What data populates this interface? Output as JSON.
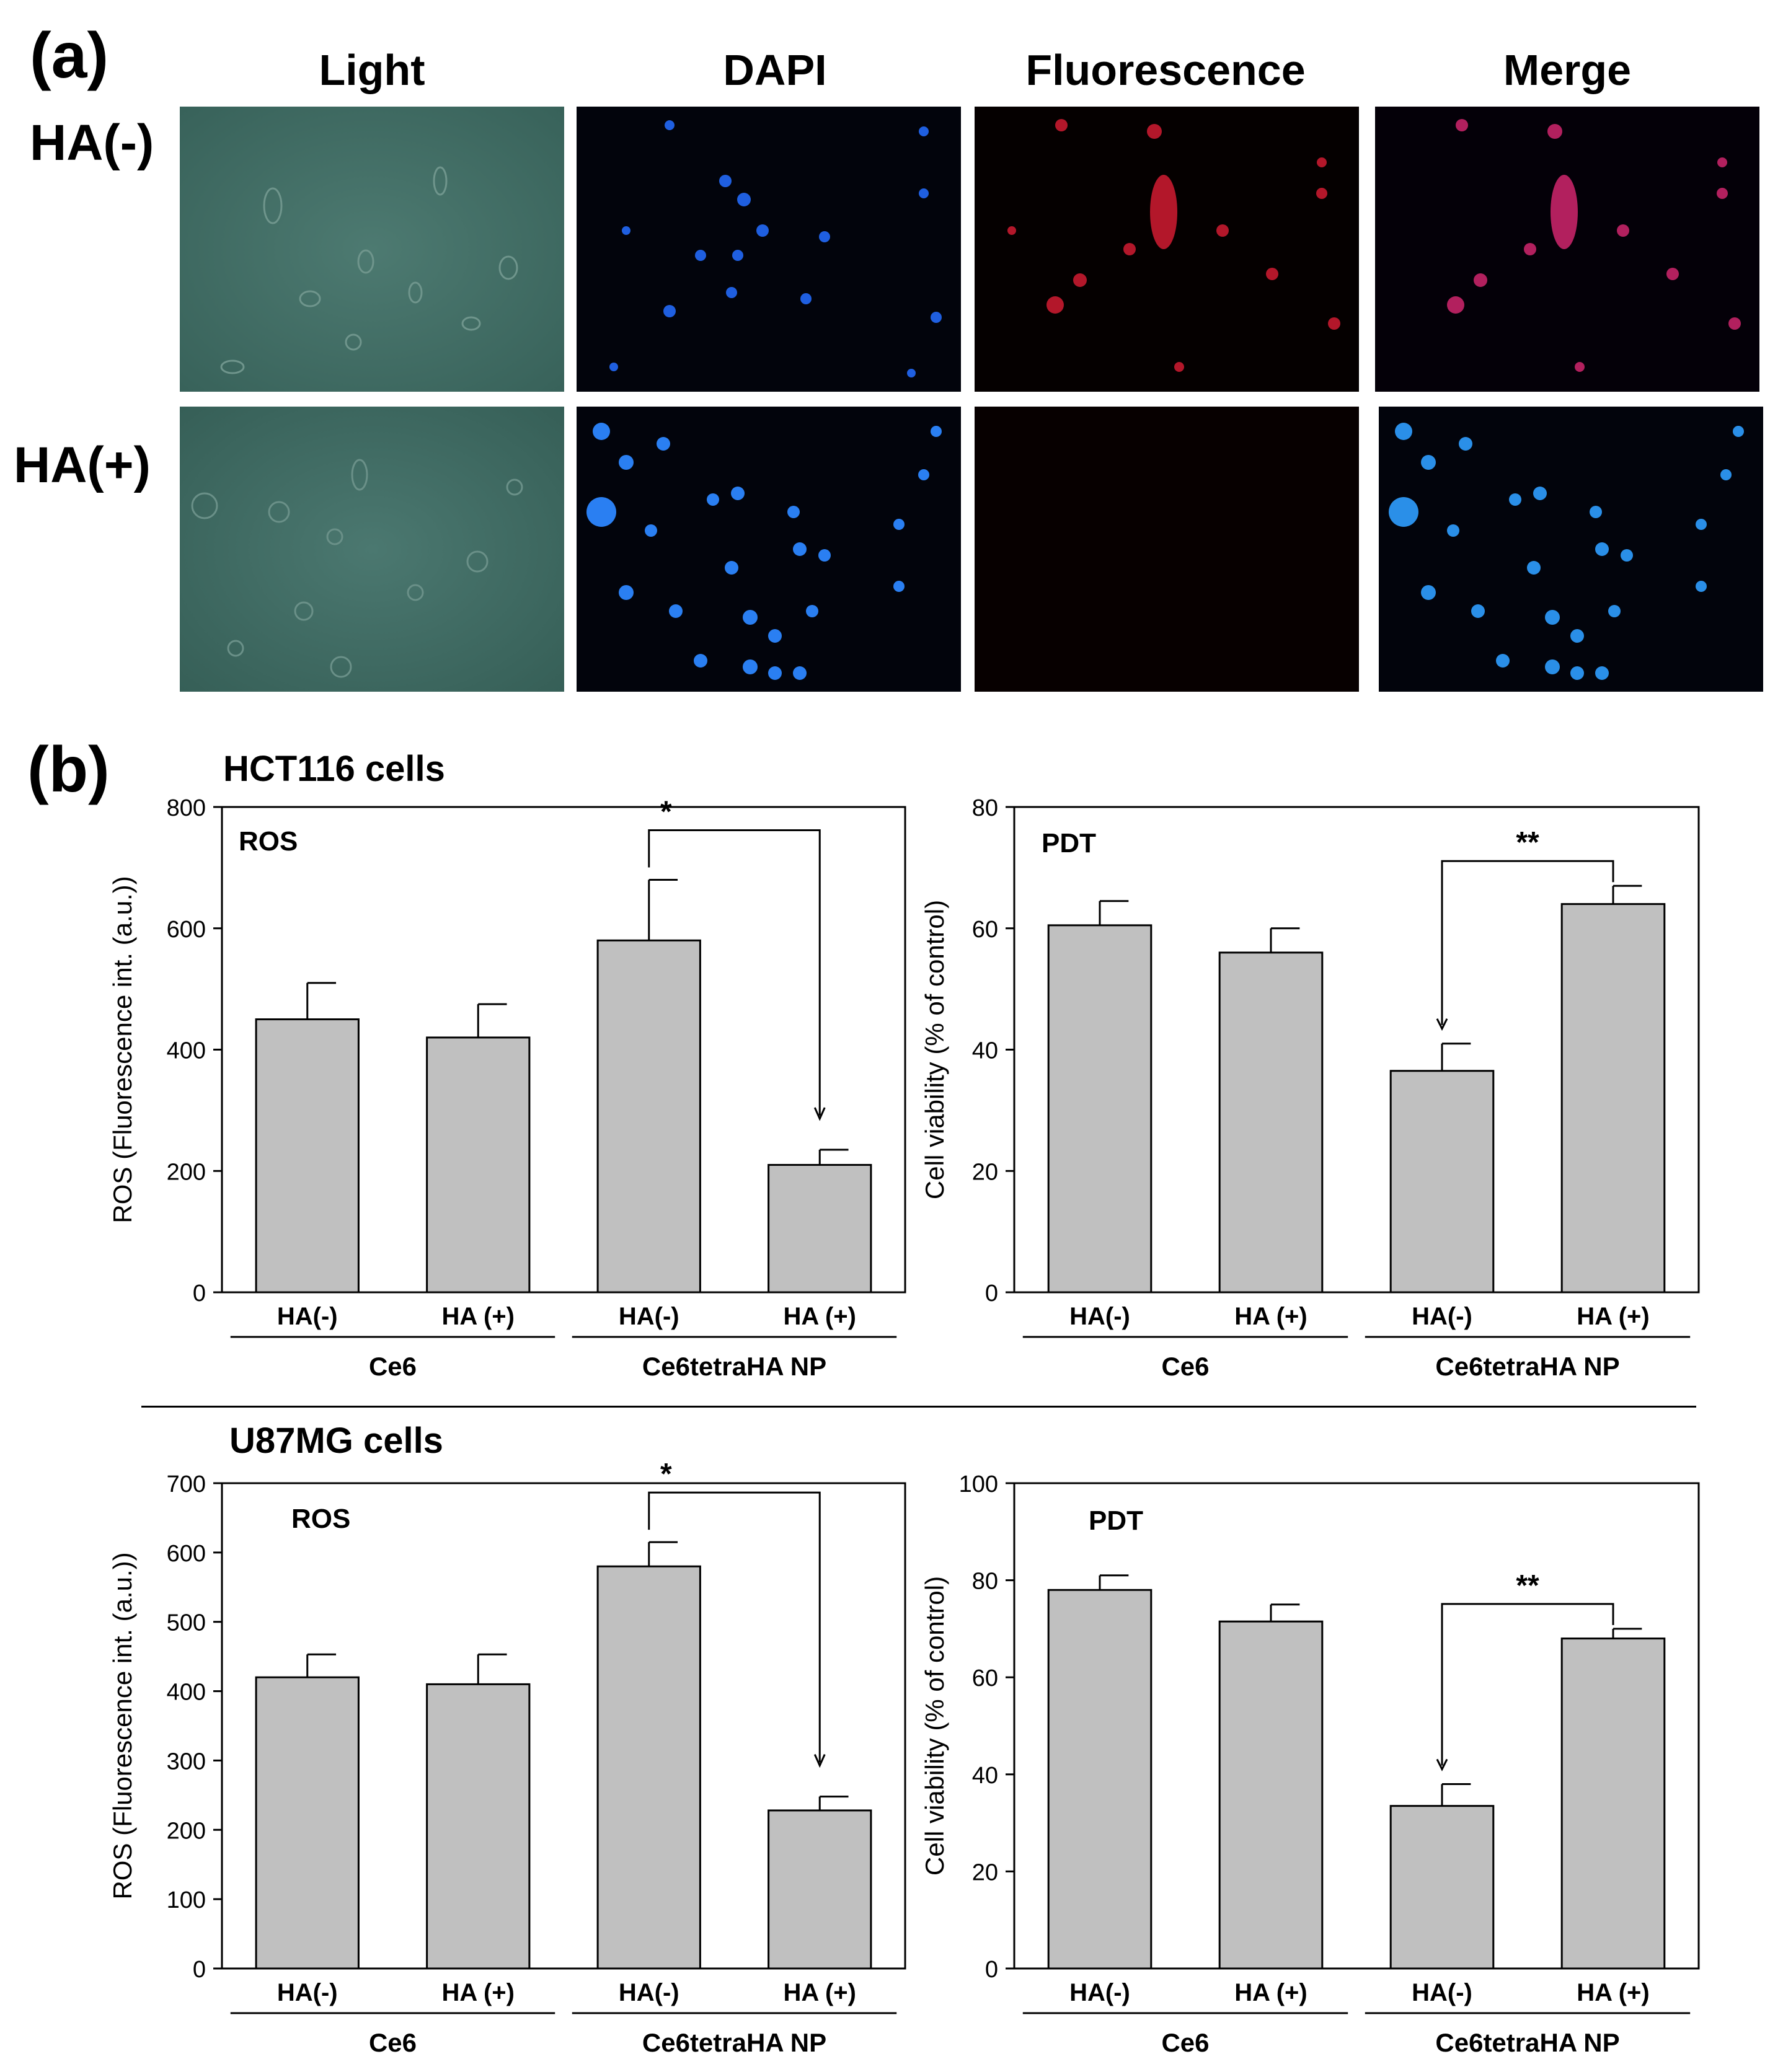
{
  "panel_a": {
    "label": "(a)",
    "columns": [
      "Light",
      "DAPI",
      "Fluorescence",
      "Merge"
    ],
    "rows": [
      "HA(-)",
      "HA(+)"
    ]
  },
  "panel_b": {
    "label": "(b)",
    "sections": [
      "HCT116 cells",
      "U87MG cells"
    ]
  },
  "colors": {
    "bar_fill": "#c0c0c0",
    "bar_stroke": "#000000",
    "light_field": "#3e6a62",
    "dapi": "#1e6cff",
    "fluor": "#d11a2a"
  },
  "chart_data": [
    {
      "type": "bar",
      "section": "HCT116 cells",
      "title": "ROS",
      "ylabel": "ROS (Fluorescence int. (a.u.))",
      "ylim": [
        0,
        800
      ],
      "yticks": [
        0,
        200,
        400,
        600,
        800
      ],
      "categories": [
        "HA(-)",
        "HA (+)",
        "HA(-)",
        "HA (+)"
      ],
      "groups": [
        "Ce6",
        "Ce6tetraHA NP"
      ],
      "values": [
        450,
        420,
        580,
        210
      ],
      "errors": [
        60,
        55,
        100,
        25
      ],
      "significance": {
        "from": 2,
        "to": 3,
        "label": "*"
      }
    },
    {
      "type": "bar",
      "section": "HCT116 cells",
      "title": "PDT",
      "ylabel": "Cell viability (% of control)",
      "ylim": [
        0,
        80
      ],
      "yticks": [
        0,
        20,
        40,
        60,
        80
      ],
      "categories": [
        "HA(-)",
        "HA (+)",
        "HA(-)",
        "HA (+)"
      ],
      "groups": [
        "Ce6",
        "Ce6tetraHA NP"
      ],
      "values": [
        60.5,
        56,
        36.5,
        64
      ],
      "errors": [
        4,
        4,
        4.5,
        3
      ],
      "significance": {
        "from": 2,
        "to": 3,
        "label": "**"
      }
    },
    {
      "type": "bar",
      "section": "U87MG cells",
      "title": "ROS",
      "ylabel": "ROS (Fluorescence int. (a.u.))",
      "ylim": [
        0,
        700
      ],
      "yticks": [
        0,
        100,
        200,
        300,
        400,
        500,
        600,
        700
      ],
      "categories": [
        "HA(-)",
        "HA (+)",
        "HA(-)",
        "HA (+)"
      ],
      "groups": [
        "Ce6",
        "Ce6tetraHA NP"
      ],
      "values": [
        420,
        410,
        580,
        228
      ],
      "errors": [
        33,
        43,
        35,
        20
      ],
      "significance": {
        "from": 2,
        "to": 3,
        "label": "*"
      }
    },
    {
      "type": "bar",
      "section": "U87MG cells",
      "title": "PDT",
      "ylabel": "Cell viability (% of control)",
      "ylim": [
        0,
        100
      ],
      "yticks": [
        0,
        20,
        40,
        60,
        80,
        100
      ],
      "categories": [
        "HA(-)",
        "HA (+)",
        "HA(-)",
        "HA (+)"
      ],
      "groups": [
        "Ce6",
        "Ce6tetraHA NP"
      ],
      "values": [
        78,
        71.5,
        33.5,
        68
      ],
      "errors": [
        3,
        3.5,
        4.5,
        2
      ],
      "significance": {
        "from": 2,
        "to": 3,
        "label": "**"
      }
    }
  ]
}
